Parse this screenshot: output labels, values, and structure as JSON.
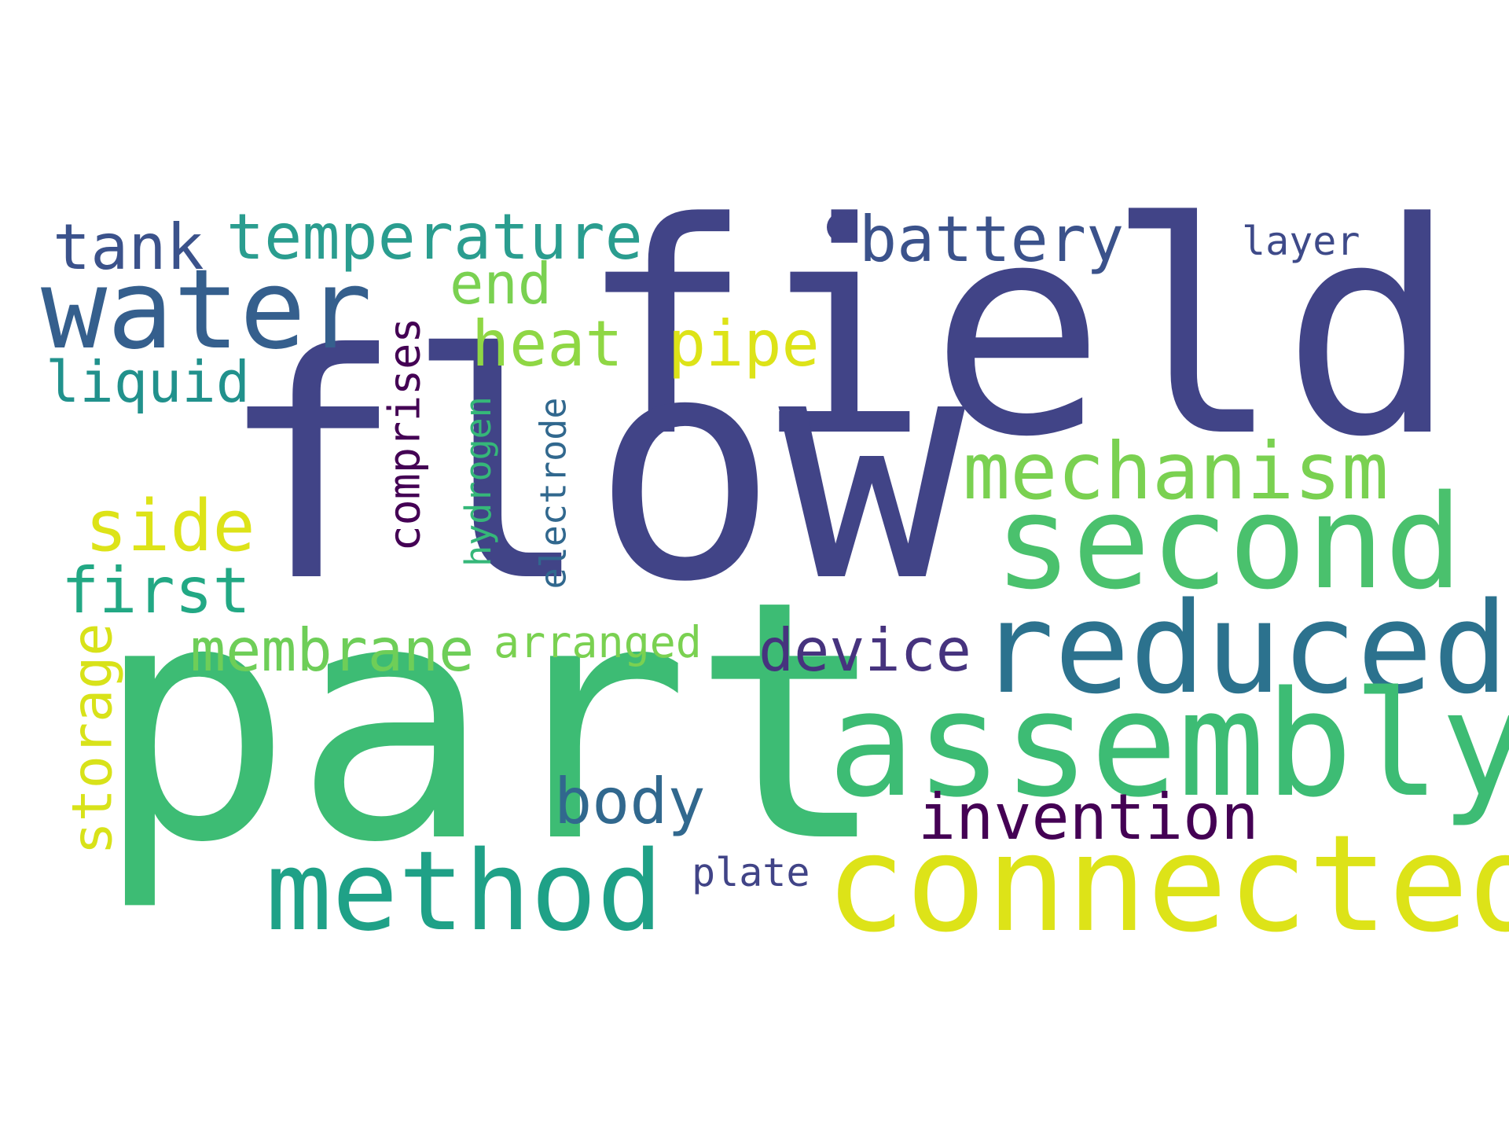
{
  "colors": {
    "background": "#ffffff",
    "navy": "#414487",
    "blue": "#355f8d",
    "teal": "#21918c",
    "green": "#3dbc74",
    "lime": "#7ad151",
    "yellow": "#dde318",
    "purple": "#440154"
  },
  "words": {
    "field": "field",
    "flow": "flow",
    "part": "part",
    "water": "water",
    "temperature": "temperature",
    "tank": "tank",
    "end": "end",
    "heat": "heat",
    "pipe": "pipe",
    "liquid": "liquid",
    "battery": "battery",
    "layer": "layer",
    "mechanism": "mechanism",
    "second": "second",
    "side": "side",
    "first": "first",
    "reduced": "reduced",
    "device": "device",
    "membrane": "membrane",
    "arranged": "arranged",
    "assembly": "assembly",
    "body": "body",
    "invention": "invention",
    "method": "method",
    "connected": "connected",
    "plate": "plate",
    "comprises": "comprises",
    "hydrogen": "hydrogen",
    "electrode": "electrode",
    "storage": "storage"
  },
  "word_colors": {
    "field": "#414487",
    "flow": "#414487",
    "part": "#3dbc74",
    "water": "#355f8d",
    "temperature": "#2a9d8f",
    "tank": "#3b528b",
    "end": "#7ad151",
    "heat": "#8fd744",
    "pipe": "#dde318",
    "liquid": "#21918c",
    "battery": "#3b528b",
    "layer": "#3e4a89",
    "mechanism": "#7ad151",
    "second": "#4ac16d",
    "side": "#dde318",
    "first": "#22a884",
    "reduced": "#2c728e",
    "device": "#46337e",
    "membrane": "#6ece58",
    "arranged": "#7ad151",
    "assembly": "#3dbc74",
    "body": "#31688e",
    "invention": "#440154",
    "method": "#1fa187",
    "connected": "#dde318",
    "plate": "#414487",
    "comprises": "#440154",
    "hydrogen": "#35b779",
    "electrode": "#31688e",
    "storage": "#d8e219"
  }
}
